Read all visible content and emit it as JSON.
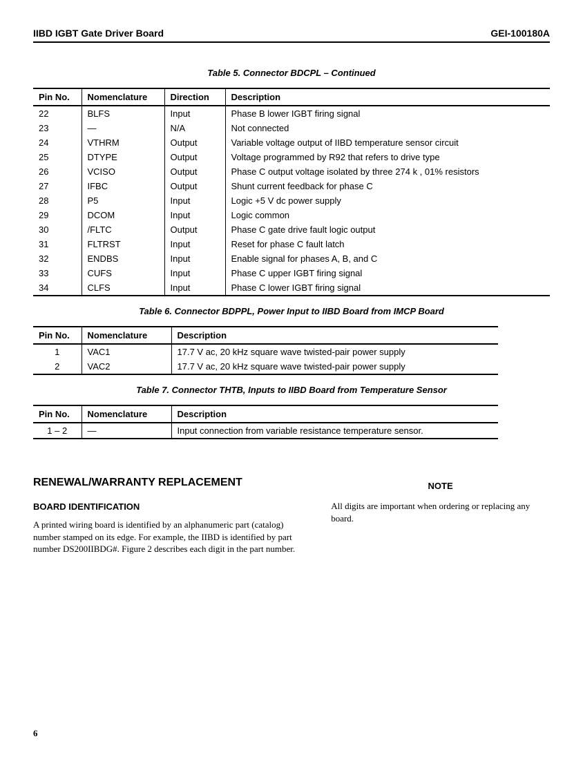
{
  "header": {
    "left": "IIBD IGBT Gate Driver Board",
    "right": "GEI-100180A"
  },
  "table5": {
    "caption": "Table 5.  Connector BDCPL – Continued",
    "columns": [
      "Pin No.",
      "Nomenclature",
      "Direction",
      "Description"
    ],
    "rows": [
      [
        "22",
        "BLFS",
        "Input",
        "Phase B lower IGBT firing signal"
      ],
      [
        "23",
        "—",
        "N/A",
        "Not connected"
      ],
      [
        "24",
        "VTHRM",
        "Output",
        "Variable voltage output of IIBD temperature sensor circuit"
      ],
      [
        "25",
        "DTYPE",
        "Output",
        "Voltage programmed by R92 that refers to drive type"
      ],
      [
        "26",
        "VCISO",
        "Output",
        "Phase C output voltage isolated by three 274 k , 01% resistors"
      ],
      [
        "27",
        "IFBC",
        "Output",
        "Shunt current feedback for phase C"
      ],
      [
        "28",
        "P5",
        "Input",
        "Logic +5 V dc power supply"
      ],
      [
        "29",
        "DCOM",
        "Input",
        "Logic common"
      ],
      [
        "30",
        "/FLTC",
        "Output",
        "Phase C gate drive fault logic output"
      ],
      [
        "31",
        "FLTRST",
        "Input",
        "Reset for phase C fault latch"
      ],
      [
        "32",
        "ENDBS",
        "Input",
        "Enable signal for phases A, B, and C"
      ],
      [
        "33",
        "CUFS",
        "Input",
        "Phase C upper IGBT firing signal"
      ],
      [
        "34",
        "CLFS",
        "Input",
        "Phase C lower IGBT firing signal"
      ]
    ]
  },
  "table6": {
    "caption": "Table 6.  Connector BDPPL, Power Input to IIBD Board from IMCP Board",
    "columns": [
      "Pin No.",
      "Nomenclature",
      "Description"
    ],
    "rows": [
      [
        "1",
        "VAC1",
        "17.7 V ac, 20 kHz square wave twisted-pair power supply"
      ],
      [
        "2",
        "VAC2",
        "17.7 V ac, 20 kHz square wave twisted-pair power supply"
      ]
    ]
  },
  "table7": {
    "caption": "Table 7.  Connector THTB, Inputs to IIBD Board from Temperature Sensor",
    "columns": [
      "Pin No.",
      "Nomenclature",
      "Description"
    ],
    "rows": [
      [
        "1 – 2",
        "—",
        "Input connection from variable resistance temperature sensor."
      ]
    ]
  },
  "renewal": {
    "heading": "RENEWAL/WARRANTY REPLACEMENT",
    "sub_heading": "BOARD IDENTIFICATION",
    "body": "A printed wiring board is identified by an alphanumeric part (catalog) number stamped on its edge. For example, the IIBD is identified by part number DS200IIBDG#. Figure 2 describes each digit in the part number.",
    "note_head": "NOTE",
    "note_body": "All digits are important when ordering or replacing any board."
  },
  "page_number": "6"
}
